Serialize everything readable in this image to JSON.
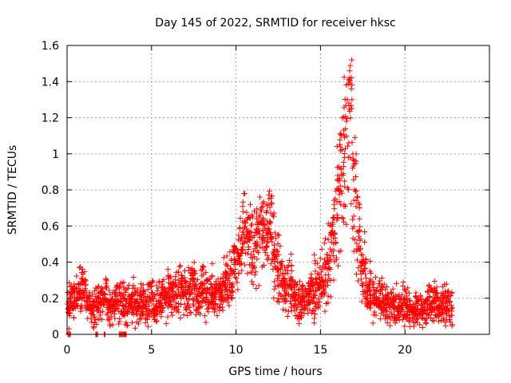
{
  "chart_data": {
    "type": "scatter",
    "title": "Day 145 of 2022, SRMTID for receiver hksc",
    "xlabel": "GPS time / hours",
    "ylabel": "SRMTID / TECUs",
    "xlim": [
      0,
      25
    ],
    "ylim": [
      0,
      1.6
    ],
    "xticks": [
      0,
      5,
      10,
      15,
      20
    ],
    "xtick_labels": [
      "0",
      "5",
      "10",
      "15",
      "20"
    ],
    "yticks": [
      0,
      0.2,
      0.4,
      0.6,
      0.8,
      1.0,
      1.2,
      1.4,
      1.6
    ],
    "ytick_labels": [
      "0",
      "0.2",
      "0.4",
      "0.6",
      "0.8",
      "1",
      "1.2",
      "1.4",
      "1.6"
    ],
    "grid": true,
    "marker": "+",
    "series": [
      {
        "name": "SRMTID",
        "color": "#ff0000",
        "x": [
          0.05,
          0.25,
          0.5,
          0.75,
          1.0,
          1.25,
          1.5,
          1.75,
          2.0,
          2.25,
          2.5,
          2.75,
          3.0,
          3.25,
          3.5,
          3.75,
          4.0,
          4.25,
          4.5,
          4.75,
          5.0,
          5.25,
          5.5,
          5.75,
          6.0,
          6.25,
          6.5,
          6.75,
          7.0,
          7.25,
          7.5,
          7.75,
          8.0,
          8.25,
          8.5,
          8.75,
          9.0,
          9.25,
          9.5,
          9.75,
          10.0,
          10.25,
          10.5,
          10.75,
          11.0,
          11.25,
          11.5,
          11.75,
          12.0,
          12.25,
          12.5,
          12.75,
          13.0,
          13.25,
          13.5,
          13.75,
          14.0,
          14.25,
          14.5,
          14.75,
          15.0,
          15.25,
          15.5,
          15.75,
          16.0,
          16.25,
          16.5,
          16.75,
          17.0,
          17.25,
          17.5,
          17.75,
          18.0,
          18.25,
          18.5,
          18.75,
          19.0,
          19.25,
          19.5,
          19.75,
          20.0,
          20.25,
          20.5,
          20.75,
          21.0,
          21.25,
          21.5,
          21.75,
          22.0,
          22.25,
          22.5,
          22.75
        ],
        "y": [
          0.13,
          0.18,
          0.2,
          0.22,
          0.25,
          0.2,
          0.14,
          0.16,
          0.19,
          0.2,
          0.15,
          0.17,
          0.18,
          0.19,
          0.13,
          0.19,
          0.18,
          0.17,
          0.18,
          0.16,
          0.2,
          0.15,
          0.19,
          0.2,
          0.23,
          0.22,
          0.24,
          0.25,
          0.22,
          0.24,
          0.27,
          0.21,
          0.25,
          0.2,
          0.24,
          0.21,
          0.23,
          0.26,
          0.29,
          0.33,
          0.42,
          0.49,
          0.56,
          0.52,
          0.47,
          0.53,
          0.6,
          0.57,
          0.62,
          0.45,
          0.38,
          0.3,
          0.24,
          0.26,
          0.2,
          0.17,
          0.19,
          0.2,
          0.24,
          0.26,
          0.27,
          0.32,
          0.4,
          0.55,
          0.68,
          0.84,
          1.05,
          1.2,
          0.8,
          0.5,
          0.33,
          0.27,
          0.22,
          0.2,
          0.19,
          0.18,
          0.17,
          0.16,
          0.15,
          0.17,
          0.16,
          0.14,
          0.13,
          0.15,
          0.14,
          0.16,
          0.17,
          0.18,
          0.16,
          0.17,
          0.18,
          0.17
        ],
        "spread": [
          0.06,
          0.05,
          0.06,
          0.07,
          0.06,
          0.05,
          0.05,
          0.06,
          0.05,
          0.06,
          0.05,
          0.05,
          0.06,
          0.05,
          0.05,
          0.05,
          0.06,
          0.05,
          0.05,
          0.06,
          0.06,
          0.05,
          0.05,
          0.06,
          0.06,
          0.06,
          0.07,
          0.07,
          0.06,
          0.06,
          0.07,
          0.06,
          0.07,
          0.06,
          0.06,
          0.06,
          0.06,
          0.06,
          0.07,
          0.07,
          0.08,
          0.09,
          0.1,
          0.1,
          0.1,
          0.1,
          0.1,
          0.1,
          0.1,
          0.1,
          0.09,
          0.08,
          0.07,
          0.07,
          0.06,
          0.06,
          0.06,
          0.06,
          0.07,
          0.07,
          0.07,
          0.08,
          0.1,
          0.12,
          0.15,
          0.2,
          0.25,
          0.25,
          0.2,
          0.14,
          0.1,
          0.08,
          0.07,
          0.06,
          0.06,
          0.06,
          0.05,
          0.05,
          0.05,
          0.05,
          0.05,
          0.05,
          0.04,
          0.05,
          0.05,
          0.05,
          0.05,
          0.06,
          0.05,
          0.05,
          0.06,
          0.06
        ],
        "zero_x": [
          0.05,
          0.1,
          0.15,
          0.2,
          1.7,
          1.75,
          1.8,
          2.2,
          2.25,
          3.1,
          3.15,
          3.2,
          3.25,
          3.3,
          3.35,
          3.4,
          3.45,
          3.5
        ]
      }
    ]
  }
}
